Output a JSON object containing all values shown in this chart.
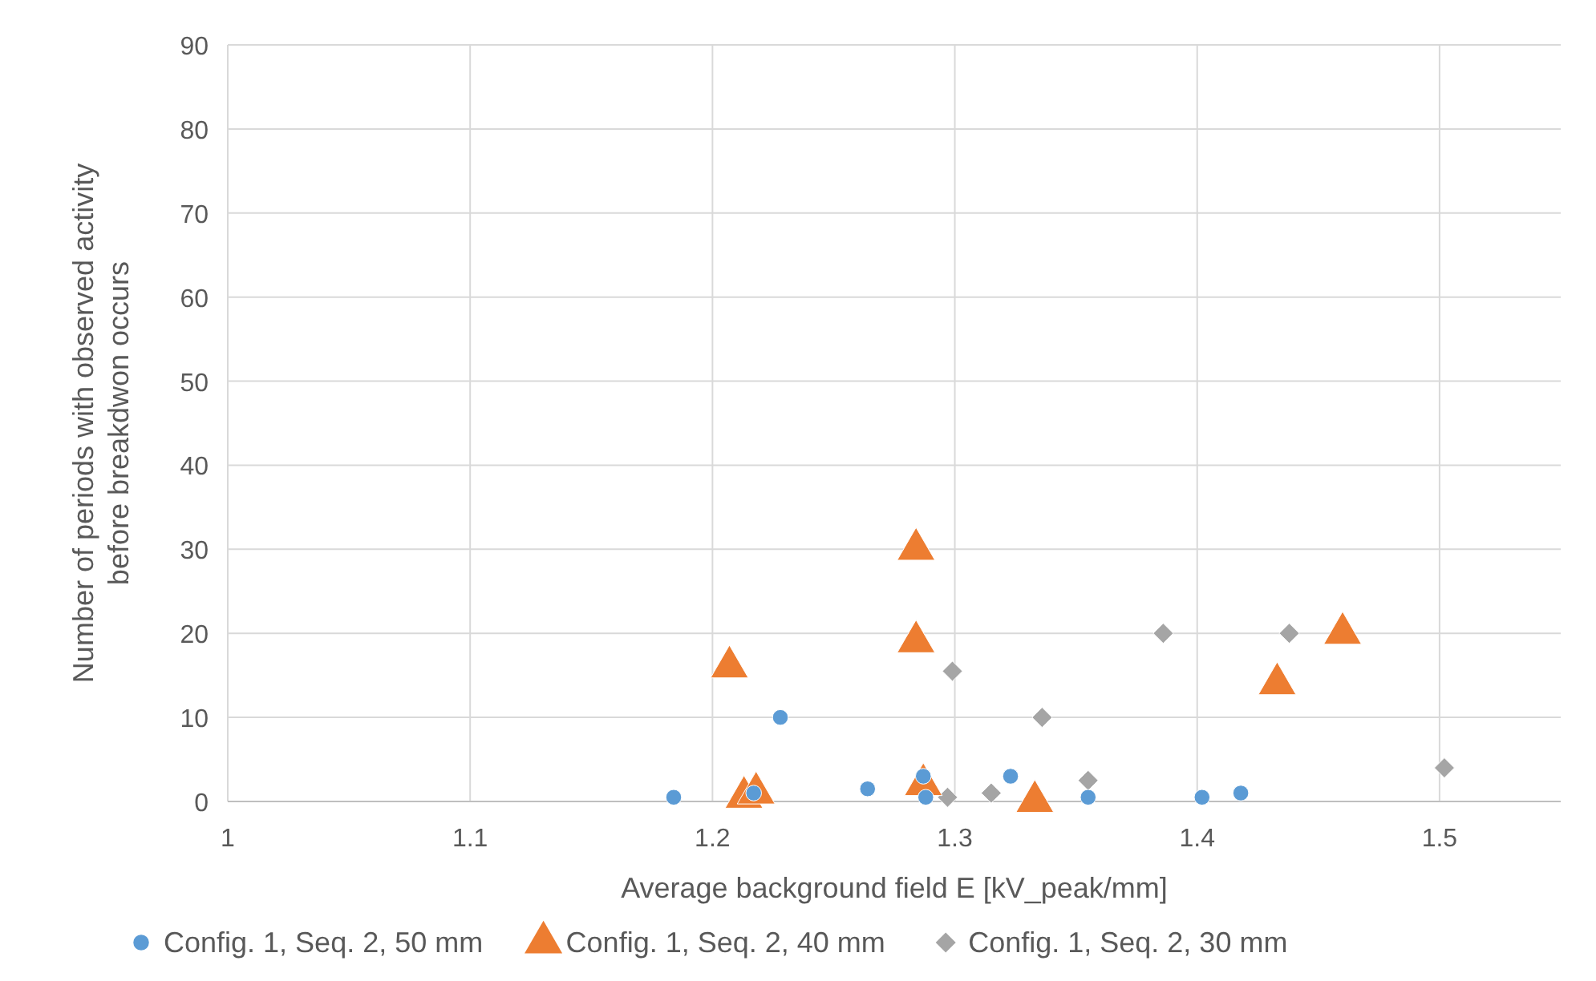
{
  "chart_data": {
    "type": "scatter",
    "xlabel": "Average background field E [kV_peak/mm]",
    "ylabel": "Number of periods with observed activity before breakdwon occurs",
    "xlim": [
      1,
      1.55
    ],
    "xticks": [
      1,
      1.1,
      1.2,
      1.3,
      1.4,
      1.5
    ],
    "ylim": [
      0,
      90
    ],
    "yticks": [
      0,
      10,
      20,
      30,
      40,
      50,
      60,
      70,
      80,
      90
    ],
    "grid": true,
    "legend": "bottom",
    "series": [
      {
        "name": "Config. 1, Seq. 2, 50 mm",
        "color": "#5b9bd5",
        "marker": "circle",
        "x": [
          1.184,
          1.217,
          1.228,
          1.264,
          1.287,
          1.288,
          1.323,
          1.355,
          1.402,
          1.418
        ],
        "values": [
          0.5,
          1,
          10,
          1.5,
          3,
          0.5,
          3,
          0.5,
          0.5,
          1
        ]
      },
      {
        "name": "Config. 1, Seq. 2, 40 mm",
        "color": "#ed7d31",
        "marker": "triangle",
        "x": [
          1.207,
          1.213,
          1.218,
          1.284,
          1.284,
          1.287,
          1.333,
          1.433,
          1.46
        ],
        "values": [
          16,
          0.5,
          1,
          30,
          19,
          2,
          0,
          14,
          20
        ]
      },
      {
        "name": "Config. 1, Seq. 2, 30 mm",
        "color": "#a5a5a5",
        "marker": "diamond",
        "x": [
          1.297,
          1.299,
          1.315,
          1.336,
          1.355,
          1.386,
          1.438,
          1.502
        ],
        "values": [
          0.5,
          15.5,
          1,
          10,
          2.5,
          20,
          20,
          4
        ]
      }
    ]
  }
}
